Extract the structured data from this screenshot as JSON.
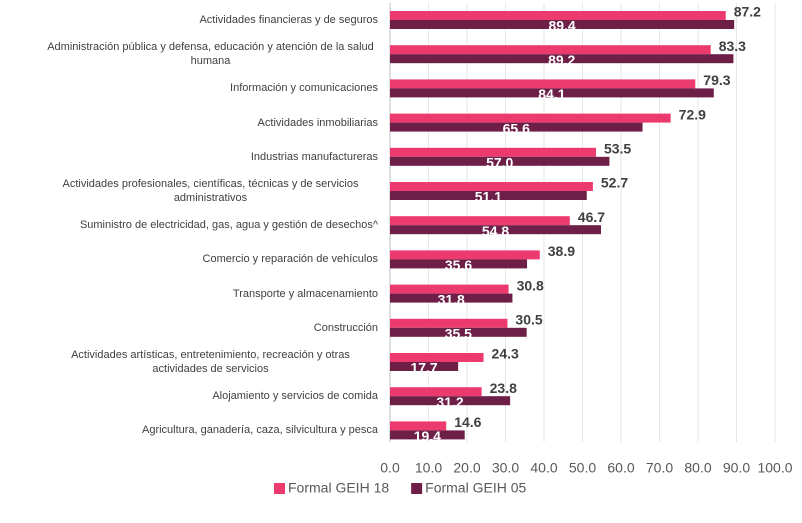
{
  "chart_data": {
    "type": "bar",
    "orientation": "horizontal",
    "categories": [
      "Actividades financieras y de seguros",
      "Administración pública y defensa, educación y atención de la salud humana",
      "Información y comunicaciones",
      "Actividades inmobiliarias",
      "Industrias manufactureras",
      "Actividades profesionales, científicas, técnicas y de servicios administrativos",
      "Suministro de electricidad, gas, agua y gestión de desechos^",
      "Comercio y reparación de vehículos",
      "Transporte y almacenamiento",
      "Construcción",
      "Actividades artísticas, entretenimiento, recreación y otras actividades de servicios",
      "Alojamiento y servicios de comida",
      "Agricultura, ganadería, caza, silvicultura y pesca"
    ],
    "series": [
      {
        "name": "Formal GEIH 18",
        "color": "#ec3a6e",
        "values": [
          87.2,
          83.3,
          79.3,
          72.9,
          53.5,
          52.7,
          46.7,
          38.9,
          30.8,
          30.5,
          24.3,
          23.8,
          14.6
        ]
      },
      {
        "name": "Formal GEIH 05",
        "color": "#6d1f47",
        "values": [
          89.4,
          89.2,
          84.1,
          65.6,
          57.0,
          51.1,
          54.8,
          35.6,
          31.8,
          35.5,
          17.7,
          31.2,
          19.4
        ],
        "value_labels": [
          "89.4",
          "89.2",
          "84.1",
          "65.6",
          "57.0",
          "51.1",
          "54.8",
          "35.6",
          "31.8",
          "35.5",
          "17.7",
          "31.2",
          "19.4"
        ]
      }
    ],
    "xlim": [
      0,
      100
    ],
    "xticks": [
      {
        "value": 0,
        "label": "0.0"
      },
      {
        "value": 10,
        "label": "10.0"
      },
      {
        "value": 20,
        "label": "20.0"
      },
      {
        "value": 30,
        "label": "30.0"
      },
      {
        "value": 40,
        "label": "40.0"
      },
      {
        "value": 50,
        "label": "50.0"
      },
      {
        "value": 60,
        "label": "60.0"
      },
      {
        "value": 70,
        "label": "70.0"
      },
      {
        "value": 80,
        "label": "80.0"
      },
      {
        "value": 90,
        "label": "90.0"
      },
      {
        "value": 100,
        "label": "100.0"
      }
    ],
    "grid": true,
    "legend": "bottom"
  }
}
